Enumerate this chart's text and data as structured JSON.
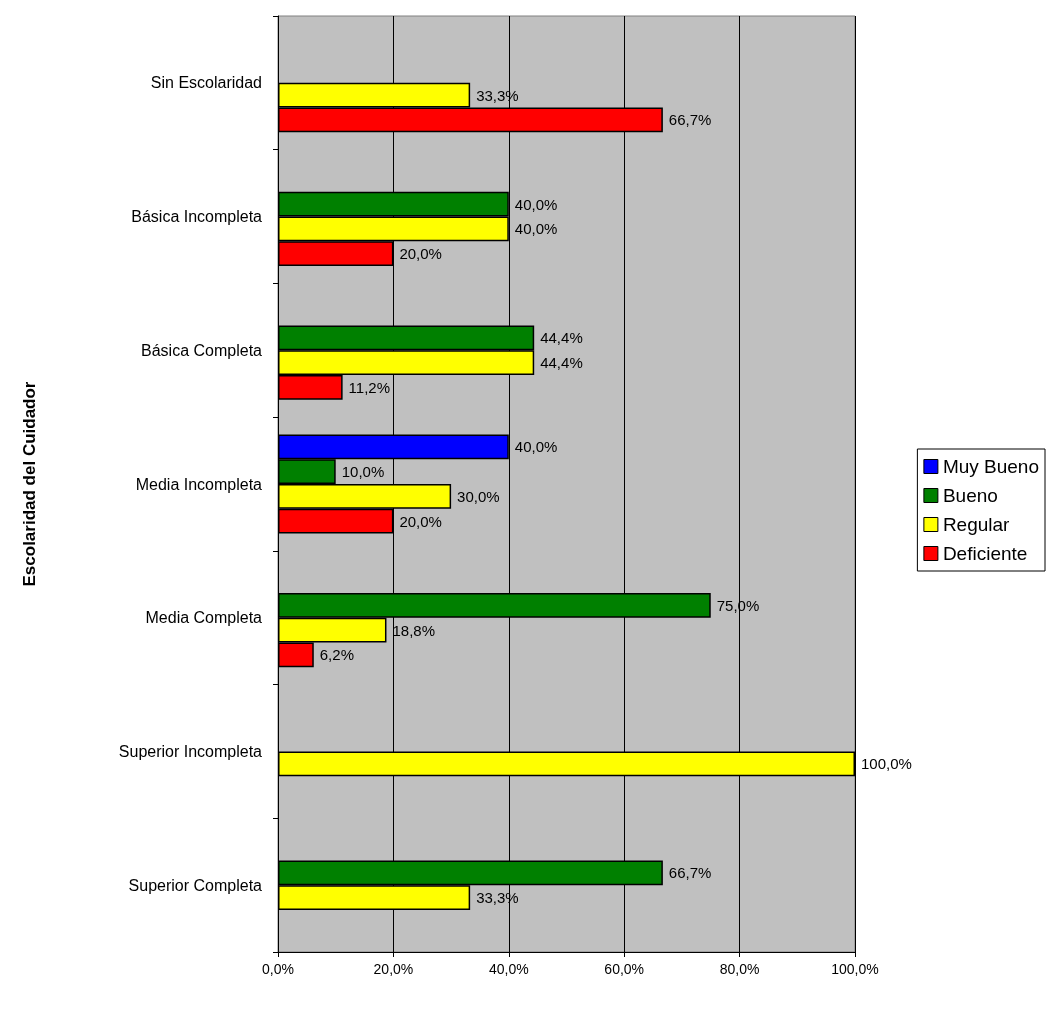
{
  "chart_data": {
    "type": "bar",
    "orientation": "horizontal",
    "ylabel": "Escolaridad del Cuidador",
    "categories": [
      "Sin Escolaridad",
      "Básica Incompleta",
      "Básica Completa",
      "Media Incompleta",
      "Media Completa",
      "Superior Incompleta",
      "Superior Completa"
    ],
    "series": [
      {
        "name": "Muy Bueno",
        "color": "#0000ff",
        "values": [
          null,
          null,
          null,
          40,
          null,
          null,
          null
        ],
        "value_labels": [
          null,
          null,
          null,
          "40,0%",
          null,
          null,
          null
        ]
      },
      {
        "name": "Bueno",
        "color": "#008000",
        "values": [
          null,
          40,
          44.4,
          10,
          75,
          null,
          66.7
        ],
        "value_labels": [
          null,
          "40,0%",
          "44,4%",
          "10,0%",
          "75,0%",
          null,
          "66,7%"
        ]
      },
      {
        "name": "Regular",
        "color": "#ffff00",
        "values": [
          33.3,
          40,
          44.4,
          30,
          18.8,
          100,
          33.3
        ],
        "value_labels": [
          "33,3%",
          "40,0%",
          "44,4%",
          "30,0%",
          "18,8%",
          "100,0%",
          "33,3%"
        ]
      },
      {
        "name": "Deficiente",
        "color": "#ff0000",
        "values": [
          66.7,
          20,
          11.2,
          20,
          6.2,
          null,
          null
        ],
        "value_labels": [
          "66,7%",
          "20,0%",
          "11,2%",
          "20,0%",
          "6,2%",
          null,
          null
        ]
      }
    ],
    "xlim": [
      0,
      100
    ],
    "xticks": [
      {
        "value": 0,
        "label": "0,0%"
      },
      {
        "value": 20,
        "label": "20,0%"
      },
      {
        "value": 40,
        "label": "40,0%"
      },
      {
        "value": 60,
        "label": "60,0%"
      },
      {
        "value": 80,
        "label": "80,0%"
      },
      {
        "value": 100,
        "label": "100,0%"
      }
    ],
    "grid": "x",
    "legend": "right"
  }
}
